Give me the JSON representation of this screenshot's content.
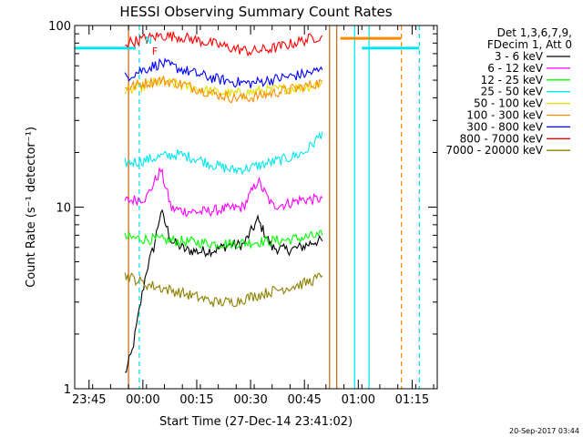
{
  "chart_data": {
    "type": "line",
    "title": "HESSI Observing Summary Count Rates",
    "xlabel": "Start Time (27-Dec-14 23:41:02)",
    "ylabel": "Count Rate (s⁻¹ detector⁻¹)",
    "yscale": "log",
    "ylim": [
      1,
      100
    ],
    "xlim": [
      "23:41",
      "01:22"
    ],
    "x_tick_labels": [
      "23:45",
      "00:00",
      "00:15",
      "00:30",
      "00:45",
      "01:00",
      "01:15"
    ],
    "y_tick_labels": [
      "1",
      "10",
      "100"
    ],
    "legend": {
      "header_line1": "Det 1,3,6,7,9,",
      "header_line2": "FDecim 1, Att 0",
      "placement": "right-outside"
    },
    "series": [
      {
        "name": "3 - 6 keV",
        "color": "#000000",
        "x": [
          "23:55",
          "23:57",
          "23:59",
          "00:01",
          "00:03",
          "00:05",
          "00:08",
          "00:12",
          "00:16",
          "00:20",
          "00:24",
          "00:28",
          "00:32",
          "00:36",
          "00:40",
          "00:44",
          "00:48",
          "00:50"
        ],
        "values": [
          1.2,
          1.6,
          2.7,
          4.5,
          6.0,
          9.5,
          6.5,
          5.8,
          5.7,
          5.8,
          6.2,
          6.2,
          8.5,
          6.0,
          5.8,
          6.0,
          6.5,
          6.5
        ]
      },
      {
        "name": "6 - 12 keV",
        "color": "#ff00ff",
        "x": [
          "23:55",
          "23:58",
          "00:01",
          "00:03",
          "00:05",
          "00:08",
          "00:12",
          "00:16",
          "00:20",
          "00:24",
          "00:28",
          "00:32",
          "00:36",
          "00:40",
          "00:44",
          "00:48",
          "00:50"
        ],
        "values": [
          10.8,
          11.0,
          11.3,
          13.5,
          16.0,
          9.8,
          9.5,
          9.4,
          9.6,
          9.8,
          10.0,
          14.0,
          10.2,
          10.4,
          11.0,
          11.0,
          11.2
        ]
      },
      {
        "name": "12 - 25 keV",
        "color": "#00ff00",
        "x": [
          "23:55",
          "00:00",
          "00:05",
          "00:10",
          "00:15",
          "00:20",
          "00:25",
          "00:30",
          "00:35",
          "00:40",
          "00:45",
          "00:50"
        ],
        "values": [
          6.8,
          6.7,
          6.6,
          6.5,
          6.4,
          6.3,
          6.3,
          6.4,
          6.5,
          6.6,
          6.8,
          7.0
        ]
      },
      {
        "name": "25 - 50 keV",
        "color": "#00e5ee",
        "x": [
          "23:55",
          "00:00",
          "00:05",
          "00:10",
          "00:15",
          "00:20",
          "00:25",
          "00:30",
          "00:35",
          "00:40",
          "00:45",
          "00:48",
          "00:50"
        ],
        "values": [
          17.5,
          18.0,
          19.0,
          19.5,
          18.5,
          17.0,
          16.0,
          16.5,
          17.5,
          18.5,
          20.0,
          23.0,
          26.0
        ]
      },
      {
        "name": "50 - 100 keV",
        "color": "#e0e000",
        "x": [
          "23:55",
          "00:00",
          "00:05",
          "00:10",
          "00:15",
          "00:20",
          "00:25",
          "00:30",
          "00:35",
          "00:40",
          "00:45",
          "00:50"
        ],
        "values": [
          43,
          46,
          49,
          47,
          45,
          43,
          42,
          43,
          44,
          45,
          46,
          48
        ]
      },
      {
        "name": "100 - 300 keV",
        "color": "#ff8c00",
        "x": [
          "23:55",
          "00:00",
          "00:05",
          "00:10",
          "00:15",
          "00:20",
          "00:25",
          "00:30",
          "00:35",
          "00:40",
          "00:45",
          "00:50"
        ],
        "values": [
          45,
          48,
          50,
          48,
          45,
          42,
          40,
          40,
          42,
          44,
          46,
          49
        ]
      },
      {
        "name": "300 - 800 keV",
        "color": "#0000ff",
        "x": [
          "23:55",
          "00:00",
          "00:05",
          "00:10",
          "00:15",
          "00:20",
          "00:25",
          "00:30",
          "00:35",
          "00:40",
          "00:45",
          "00:50"
        ],
        "values": [
          52,
          57,
          62,
          58,
          54,
          51,
          49,
          48,
          50,
          52,
          54,
          57
        ]
      },
      {
        "name": "800 - 7000 keV",
        "color": "#ff0000",
        "x": [
          "23:55",
          "00:00",
          "00:05",
          "00:10",
          "00:15",
          "00:20",
          "00:25",
          "00:30",
          "00:35",
          "00:40",
          "00:45",
          "00:50"
        ],
        "values": [
          80,
          84,
          88,
          87,
          83,
          79,
          75,
          72,
          74,
          78,
          83,
          88
        ]
      },
      {
        "name": "7000 - 20000 keV",
        "color": "#8b8000",
        "x": [
          "23:55",
          "23:58",
          "00:00",
          "00:05",
          "00:10",
          "00:15",
          "00:20",
          "00:25",
          "00:30",
          "00:35",
          "00:40",
          "00:45",
          "00:48",
          "00:50"
        ],
        "values": [
          4.2,
          4.0,
          3.8,
          3.6,
          3.4,
          3.2,
          3.0,
          3.0,
          3.2,
          3.4,
          3.6,
          3.8,
          4.0,
          4.2
        ]
      }
    ],
    "markers": [
      {
        "label": "N",
        "x": "00:00",
        "color": "#00e5ee"
      },
      {
        "label": "F",
        "x": "00:02",
        "color": "#ff0000"
      }
    ],
    "event_lines": [
      {
        "x": "23:56",
        "color": "#d2691e",
        "style": "solid"
      },
      {
        "x": "00:52",
        "color": "#d2691e",
        "style": "solid"
      },
      {
        "x": "00:54",
        "color": "#d2691e",
        "style": "solid"
      },
      {
        "x": "00:59",
        "color": "#00e5ee",
        "style": "solid"
      },
      {
        "x": "01:03",
        "color": "#00e5ee",
        "style": "solid"
      },
      {
        "x": "01:17",
        "color": "#00e5ee",
        "style": "dashed"
      },
      {
        "x": "01:12",
        "color": "#ff8c00",
        "style": "dashed"
      },
      {
        "x": "23:59",
        "color": "#00e5ee",
        "style": "dashed"
      }
    ],
    "state_bars": [
      {
        "color": "#00e5ee",
        "x_start": "23:41",
        "x_end": "23:58",
        "level": 75
      },
      {
        "color": "#00e5ee",
        "x_start": "01:01",
        "x_end": "01:17",
        "level": 75
      },
      {
        "color": "#ff8c00",
        "x_start": "00:55",
        "x_end": "01:12",
        "level": 85
      }
    ],
    "grid": false
  },
  "footer": {
    "timestamp": "20-Sep-2017 03:44"
  }
}
